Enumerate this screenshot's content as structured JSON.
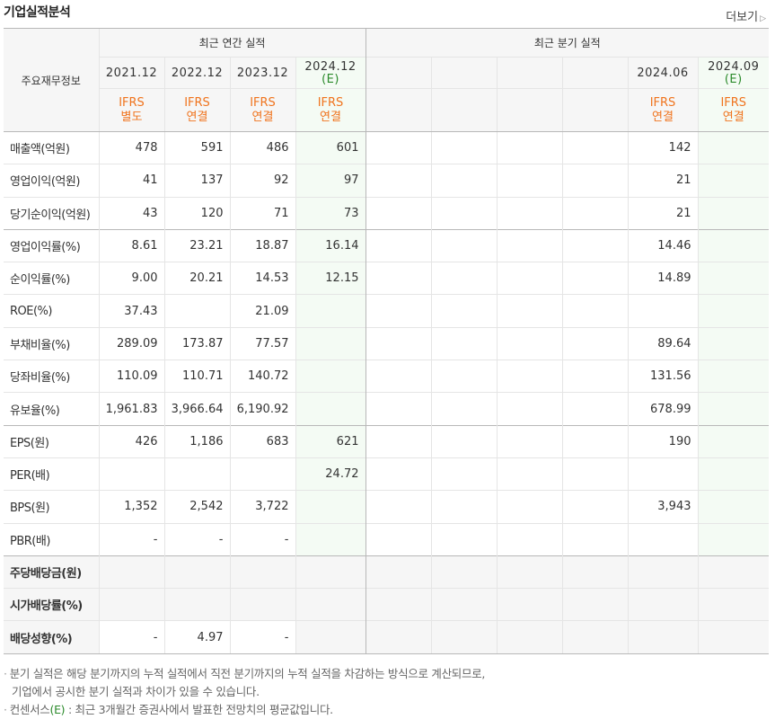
{
  "header": {
    "title": "기업실적분석",
    "more_label": "더보기",
    "more_arrow": "▷"
  },
  "table": {
    "main_header": "주요재무정보",
    "annual_group": "최근 연간 실적",
    "quarter_group": "최근 분기 실적",
    "annual_periods": [
      {
        "label": "2021.12",
        "est": "",
        "ifrs1": "IFRS",
        "ifrs2": "별도"
      },
      {
        "label": "2022.12",
        "est": "",
        "ifrs1": "IFRS",
        "ifrs2": "연결"
      },
      {
        "label": "2023.12",
        "est": "",
        "ifrs1": "IFRS",
        "ifrs2": "연결"
      },
      {
        "label": "2024.12",
        "est": "(E)",
        "ifrs1": "IFRS",
        "ifrs2": "연결"
      }
    ],
    "quarter_periods": [
      {
        "label": "",
        "est": "",
        "ifrs1": "",
        "ifrs2": ""
      },
      {
        "label": "",
        "est": "",
        "ifrs1": "",
        "ifrs2": ""
      },
      {
        "label": "",
        "est": "",
        "ifrs1": "",
        "ifrs2": ""
      },
      {
        "label": "",
        "est": "",
        "ifrs1": "",
        "ifrs2": ""
      },
      {
        "label": "2024.06",
        "est": "",
        "ifrs1": "IFRS",
        "ifrs2": "연결"
      },
      {
        "label": "2024.09",
        "est": "(E)",
        "ifrs1": "IFRS",
        "ifrs2": "연결"
      }
    ],
    "rows": [
      {
        "label": "매출액(억원)",
        "annual": [
          "478",
          "591",
          "486",
          "601"
        ],
        "quarter": [
          "",
          "",
          "",
          "",
          "142",
          ""
        ]
      },
      {
        "label": "영업이익(억원)",
        "annual": [
          "41",
          "137",
          "92",
          "97"
        ],
        "quarter": [
          "",
          "",
          "",
          "",
          "21",
          ""
        ]
      },
      {
        "label": "당기순이익(억원)",
        "annual": [
          "43",
          "120",
          "71",
          "73"
        ],
        "quarter": [
          "",
          "",
          "",
          "",
          "21",
          ""
        ]
      },
      {
        "label": "영업이익률(%)",
        "annual": [
          "8.61",
          "23.21",
          "18.87",
          "16.14"
        ],
        "quarter": [
          "",
          "",
          "",
          "",
          "14.46",
          ""
        ]
      },
      {
        "label": "순이익률(%)",
        "annual": [
          "9.00",
          "20.21",
          "14.53",
          "12.15"
        ],
        "quarter": [
          "",
          "",
          "",
          "",
          "14.89",
          ""
        ]
      },
      {
        "label": "ROE(%)",
        "annual": [
          "37.43",
          "",
          "21.09",
          ""
        ],
        "quarter": [
          "",
          "",
          "",
          "",
          "",
          ""
        ]
      },
      {
        "label": "부채비율(%)",
        "annual": [
          "289.09",
          "173.87",
          "77.57",
          ""
        ],
        "quarter": [
          "",
          "",
          "",
          "",
          "89.64",
          ""
        ]
      },
      {
        "label": "당좌비율(%)",
        "annual": [
          "110.09",
          "110.71",
          "140.72",
          ""
        ],
        "quarter": [
          "",
          "",
          "",
          "",
          "131.56",
          ""
        ]
      },
      {
        "label": "유보율(%)",
        "annual": [
          "1,961.83",
          "3,966.64",
          "6,190.92",
          ""
        ],
        "quarter": [
          "",
          "",
          "",
          "",
          "678.99",
          ""
        ]
      },
      {
        "label": "EPS(원)",
        "annual": [
          "426",
          "1,186",
          "683",
          "621"
        ],
        "quarter": [
          "",
          "",
          "",
          "",
          "190",
          ""
        ]
      },
      {
        "label": "PER(배)",
        "annual": [
          "",
          "",
          "",
          "24.72"
        ],
        "quarter": [
          "",
          "",
          "",
          "",
          "",
          ""
        ]
      },
      {
        "label": "BPS(원)",
        "annual": [
          "1,352",
          "2,542",
          "3,722",
          ""
        ],
        "quarter": [
          "",
          "",
          "",
          "",
          "3,943",
          ""
        ]
      },
      {
        "label": "PBR(배)",
        "annual": [
          "-",
          "-",
          "-",
          ""
        ],
        "quarter": [
          "",
          "",
          "",
          "",
          "",
          ""
        ]
      },
      {
        "label": "주당배당금(원)",
        "annual": [
          "",
          "",
          "",
          ""
        ],
        "quarter": [
          "",
          "",
          "",
          "",
          "",
          ""
        ]
      },
      {
        "label": "시가배당률(%)",
        "annual": [
          "",
          "",
          "",
          ""
        ],
        "quarter": [
          "",
          "",
          "",
          "",
          "",
          ""
        ]
      },
      {
        "label": "배당성향(%)",
        "annual": [
          "-",
          "4.97",
          "-",
          ""
        ],
        "quarter": [
          "",
          "",
          "",
          "",
          "",
          ""
        ]
      }
    ]
  },
  "notes": {
    "line1": "분기 실적은 해당 분기까지의 누적 실적에서 직전 분기까지의 누적 실적을 차감하는 방식으로 계산되므로,",
    "line2": "기업에서 공시한 분기 실적과 차이가 있을 수 있습니다.",
    "line3_pre": "컨센서스",
    "line3_e": "(E)",
    "line3_post": " : 최근 3개월간 증권사에서 발표한 전망치의 평균값입니다."
  }
}
